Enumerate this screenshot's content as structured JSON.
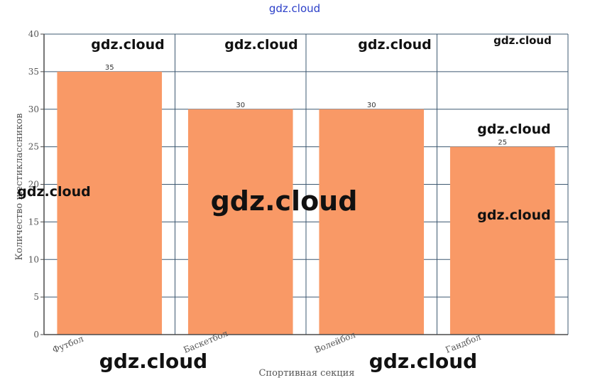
{
  "chart_data": {
    "type": "bar",
    "categories": [
      "Футбол",
      "Баскетбол",
      "Волейбол",
      "Гандбол"
    ],
    "values": [
      35,
      30,
      30,
      25
    ],
    "title": "",
    "xlabel": "Спортивная секция",
    "ylabel": "Количество шестиклассников",
    "ylim": [
      0,
      40
    ],
    "yticks": [
      0,
      5,
      10,
      15,
      20,
      25,
      30,
      35,
      40
    ],
    "grid": true,
    "bar_color": "#f99966",
    "grid_color": "#3d5870"
  },
  "watermarks": {
    "top": "gdz.cloud",
    "items": [
      "gdz.cloud",
      "gdz.cloud",
      "gdz.cloud",
      "gdz.cloud",
      "gdz.cloud",
      "gdz.cloud",
      "gdz.cloud",
      "gdz.cloud",
      "gdz.cloud",
      "gdz.cloud"
    ]
  }
}
